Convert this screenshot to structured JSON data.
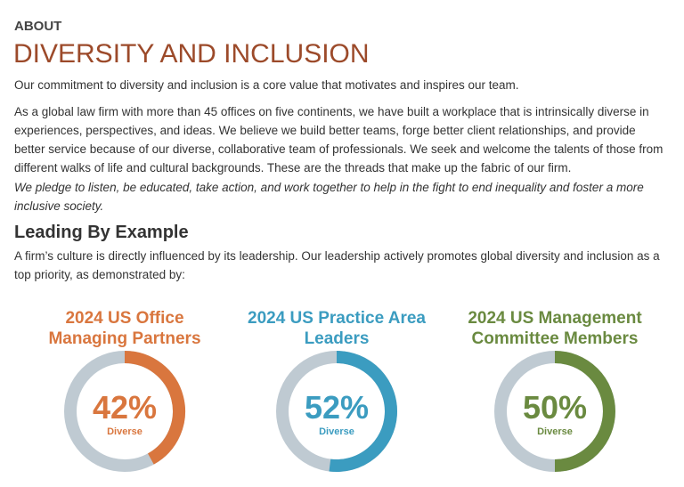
{
  "header": {
    "kicker": "ABOUT",
    "title": "DIVERSITY AND INCLUSION"
  },
  "paragraphs": [
    "Our commitment to diversity and inclusion is a core value that motivates and inspires our team.",
    "As a global law firm with more than 45 offices on five continents, we have built a workplace that is intrinsically diverse in experiences, perspectives, and ideas. We believe we build better teams, forge better client relationships, and provide better service because of our diverse, collaborative team of professionals. We seek and welcome the talents of those from different walks of life and cultural backgrounds. These are the threads that make up the fabric of our firm.",
    "We pledge to listen, be educated, take action, and work together to help in the fight to end inequality and foster a more inclusive society."
  ],
  "section": {
    "heading": "Leading By Example",
    "text": "A firm’s culture is directly influenced by its leadership. Our leadership actively promotes global diversity and inclusion as a top priority, as demonstrated by:"
  },
  "chart_data": [
    {
      "type": "donut",
      "title": "2024 US Office Managing Partners",
      "values": [
        42
      ],
      "value_labels": [
        "42%"
      ],
      "subtitle": "Diverse",
      "color": "#d9763e",
      "track_color": "#bfcad2"
    },
    {
      "type": "donut",
      "title": "2024 US Practice Area Leaders",
      "values": [
        52
      ],
      "value_labels": [
        "52%"
      ],
      "subtitle": "Diverse",
      "color": "#3b9cc0",
      "track_color": "#bfcad2"
    },
    {
      "type": "donut",
      "title": "2024 US Management Committee Members",
      "values": [
        50
      ],
      "value_labels": [
        "50%"
      ],
      "subtitle": "Diverse",
      "color": "#6a8a40",
      "track_color": "#bfcad2"
    }
  ]
}
